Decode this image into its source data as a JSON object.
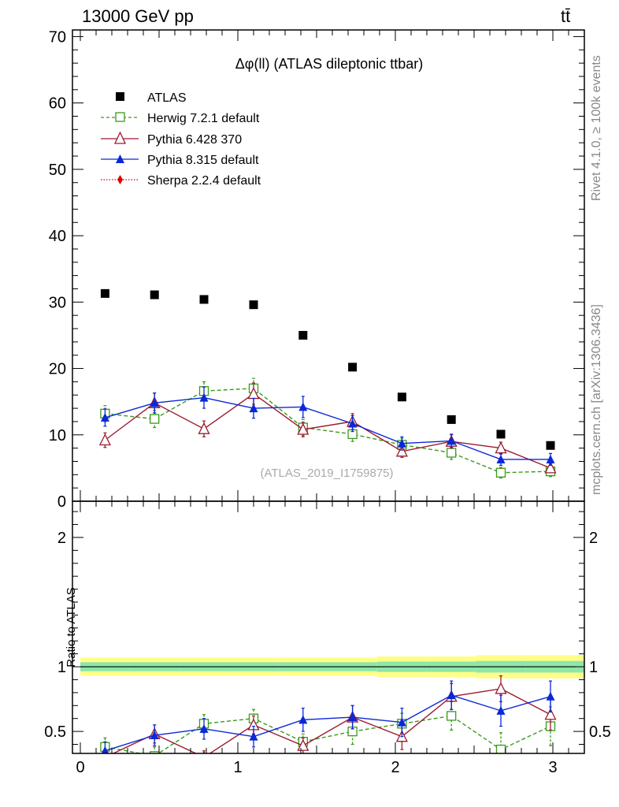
{
  "header": {
    "energy_label": "13000 GeV pp",
    "process_label": "tt̄"
  },
  "side_labels": {
    "rivet": "Rivet 4.1.0, ≥ 100k events",
    "mcplots": "mcplots.cern.ch [arXiv:1306.3436]"
  },
  "colors": {
    "atlas": "#000000",
    "herwig": "#3a9a1a",
    "pythia6": "#9b1b30",
    "pythia8": "#0a28d8",
    "sherpa": "#e00000",
    "band_outer": "#ffff88",
    "band_inner": "#8ee6a8"
  },
  "chart_data": [
    {
      "type": "scatter",
      "title": "Δφ(ll) (ATLAS dileptonic ttbar)",
      "watermark": "(ATLAS_2019_I1759875)",
      "xlabel": "",
      "ylabel": "",
      "xlim": [
        -0.05,
        3.2
      ],
      "ylim": [
        0,
        71
      ],
      "x_ticks": [
        0,
        1,
        2,
        3
      ],
      "y_ticks": [
        0,
        10,
        20,
        30,
        40,
        50,
        60,
        70
      ],
      "y_tick_labels": [
        "0",
        "10",
        "20",
        "30",
        "40",
        "50",
        "60",
        "70"
      ],
      "x": [
        0.157,
        0.471,
        0.785,
        1.1,
        1.414,
        1.728,
        2.042,
        2.356,
        2.67,
        2.985
      ],
      "series": [
        {
          "name": "ATLAS",
          "style": "black-square",
          "values": [
            31.3,
            31.1,
            30.4,
            29.6,
            25.0,
            20.2,
            15.7,
            12.3,
            10.1,
            8.4
          ]
        },
        {
          "name": "Herwig 7.2.1 default",
          "style": "green-open-square-dashed",
          "values": [
            13.2,
            12.4,
            16.6,
            17.0,
            11.1,
            10.1,
            8.5,
            7.3,
            4.3,
            4.5
          ],
          "errors": [
            1.2,
            1.3,
            1.4,
            1.5,
            1.2,
            1.1,
            1.0,
            1.0,
            0.8,
            0.8
          ]
        },
        {
          "name": "Pythia 6.428 370",
          "style": "red-open-triangle",
          "values": [
            9.2,
            14.8,
            10.9,
            16.2,
            10.8,
            12.0,
            7.5,
            9.0,
            8.0,
            5.0
          ],
          "errors": [
            1.1,
            1.5,
            1.2,
            1.6,
            1.1,
            1.2,
            0.9,
            1.0,
            0.9,
            0.7
          ]
        },
        {
          "name": "Pythia 8.315 default",
          "style": "blue-filled-triangle",
          "values": [
            12.6,
            14.8,
            15.6,
            14.0,
            14.2,
            11.7,
            8.7,
            9.1,
            6.3,
            6.3
          ],
          "errors": [
            1.3,
            1.5,
            1.6,
            1.5,
            1.6,
            1.2,
            1.0,
            1.0,
            0.9,
            0.9
          ]
        },
        {
          "name": "Sherpa 2.2.4 default",
          "style": "red-diamond-dotted",
          "values": []
        }
      ]
    },
    {
      "type": "line",
      "title": "",
      "xlabel": "",
      "ylabel": "Ratio to ATLAS",
      "xlim": [
        -0.05,
        3.2
      ],
      "ylim": [
        0.33,
        2.28
      ],
      "x_ticks": [
        0,
        1,
        2,
        3
      ],
      "x_tick_labels": [
        "0",
        "1",
        "2",
        "3"
      ],
      "y_ticks": [
        0.5,
        1,
        2
      ],
      "y_tick_labels": [
        "0.5",
        "1",
        "2"
      ],
      "x": [
        0.157,
        0.471,
        0.785,
        1.1,
        1.414,
        1.728,
        2.042,
        2.356,
        2.67,
        2.985
      ],
      "reference_line": 1.0,
      "band_outer_halfwidth": [
        0.07,
        0.07,
        0.07,
        0.07,
        0.07,
        0.07,
        0.08,
        0.08,
        0.09,
        0.09
      ],
      "band_inner_halfwidth": [
        0.035,
        0.035,
        0.035,
        0.035,
        0.035,
        0.035,
        0.04,
        0.04,
        0.045,
        0.045
      ],
      "series": [
        {
          "name": "Herwig 7.2.1 default",
          "values": [
            0.38,
            0.31,
            0.56,
            0.6,
            0.42,
            0.5,
            0.56,
            0.62,
            0.36,
            0.54
          ],
          "errors": [
            0.07,
            0.07,
            0.07,
            0.07,
            0.06,
            0.1,
            0.08,
            0.11,
            0.13,
            0.15
          ]
        },
        {
          "name": "Pythia 6.428 370",
          "values": [
            0.3,
            0.48,
            0.3,
            0.55,
            0.39,
            0.61,
            0.46,
            0.77,
            0.83,
            0.63
          ],
          "errors": [
            0.05,
            0.07,
            0.05,
            0.07,
            0.06,
            0.09,
            0.1,
            0.1,
            0.1,
            0.12
          ]
        },
        {
          "name": "Pythia 8.315 default",
          "values": [
            0.35,
            0.47,
            0.52,
            0.46,
            0.59,
            0.61,
            0.57,
            0.78,
            0.66,
            0.77
          ],
          "errors": [
            0.07,
            0.08,
            0.08,
            0.08,
            0.09,
            0.09,
            0.11,
            0.11,
            0.12,
            0.12
          ]
        }
      ]
    }
  ]
}
